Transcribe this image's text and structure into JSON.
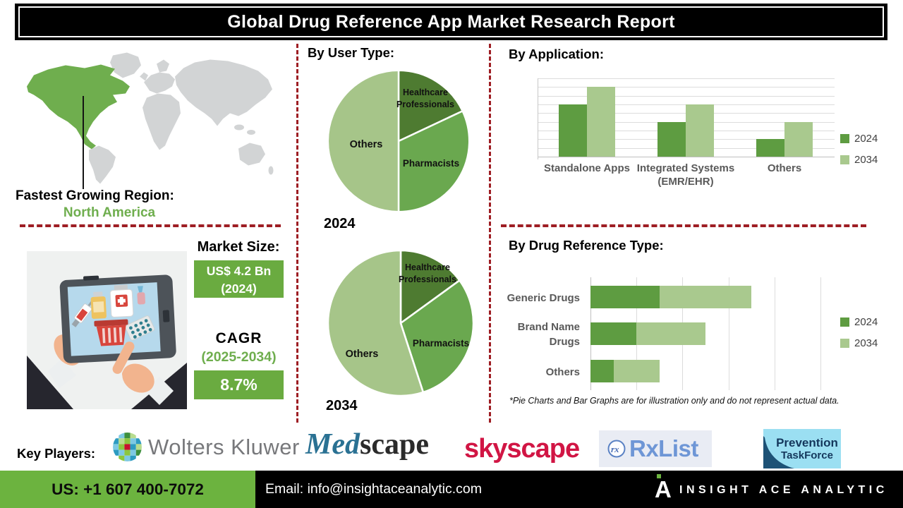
{
  "title": "Global Drug Reference App Market Research Report",
  "region": {
    "label": "Fastest Growing Region:",
    "value": "North America"
  },
  "market": {
    "heading": "Market Size:",
    "size_value": "US$ 4.2 Bn",
    "size_year": "(2024)",
    "cagr_label": "CAGR",
    "cagr_period": "(2025-2034)",
    "cagr_value": "8.7%"
  },
  "chart_data": [
    {
      "type": "pie",
      "title": "By User Type:",
      "year": "2024",
      "labels": [
        "Healthcare Professionals",
        "Pharmacists",
        "Others"
      ],
      "values": [
        18,
        32,
        50
      ],
      "colors": [
        "#4e7b31",
        "#6aa84f",
        "#a6c589"
      ]
    },
    {
      "type": "pie",
      "title": "By User Type:",
      "year": "2034",
      "labels": [
        "Healthcare Professionals",
        "Pharmacists",
        "Others"
      ],
      "values": [
        15,
        30,
        55
      ],
      "colors": [
        "#4e7b31",
        "#6aa84f",
        "#a6c589"
      ]
    },
    {
      "type": "bar",
      "title": "By Application:",
      "categories": [
        "Standalone Apps",
        "Integrated Systems (EMR/EHR)",
        "Others"
      ],
      "series": [
        {
          "name": "2024",
          "values": [
            6,
            4,
            2
          ],
          "color": "#5e9c41"
        },
        {
          "name": "2034",
          "values": [
            8,
            6,
            4
          ],
          "color": "#a9c98e"
        }
      ],
      "ylim": [
        0,
        9
      ],
      "grid": true,
      "legend_position": "right"
    },
    {
      "type": "stacked-bar-horizontal",
      "title": "By Drug Reference Type:",
      "categories": [
        "Generic Drugs",
        "Brand Name Drugs",
        "Others"
      ],
      "series": [
        {
          "name": "2024",
          "values": [
            1.5,
            1,
            0.5
          ],
          "color": "#5e9c41"
        },
        {
          "name": "2034",
          "values": [
            2,
            1.5,
            1
          ],
          "color": "#a9c98e"
        }
      ],
      "xlim": [
        0,
        5
      ],
      "grid": true,
      "legend_position": "right"
    }
  ],
  "disclaimer": "*Pie Charts and Bar Graphs are for illustration only and do not represent actual data.",
  "key_players": {
    "label": "Key Players:",
    "companies": [
      "Wolters Kluwer",
      "Medscape",
      "skyscape",
      "RxList",
      "Prevention TaskForce"
    ]
  },
  "logos": {
    "wolters_kluwer": {
      "text": "Wolters Kluwer",
      "text_color": "#77787b"
    },
    "medscape": {
      "part1": "Med",
      "part2": "scape",
      "color1": "#2a7193",
      "color2": "#2b2b2b"
    },
    "skyscape": {
      "text": "skyscape",
      "color": "#d11544"
    },
    "rxlist": {
      "text": "RxList",
      "color": "#6e96d6",
      "bg": "#e9ecf4"
    },
    "prevention_taskforce": {
      "line1": "Prevention",
      "line2": "TaskForce",
      "color": "#14375c",
      "bg": "#9bdff2"
    }
  },
  "footer": {
    "phone": "US: +1 607 400-7072",
    "email": "Email: info@insightaceanalytic.com",
    "brand": "INSIGHT ACE ANALYTIC",
    "brand_mark": "A",
    "phone_bg": "#6cb33f"
  },
  "colors": {
    "dashed_red": "#9e1e24",
    "na_green": "#6fae4e",
    "box_green": "#6aab40",
    "bar_2024": "#5e9c41",
    "bar_2034": "#a9c98e"
  }
}
